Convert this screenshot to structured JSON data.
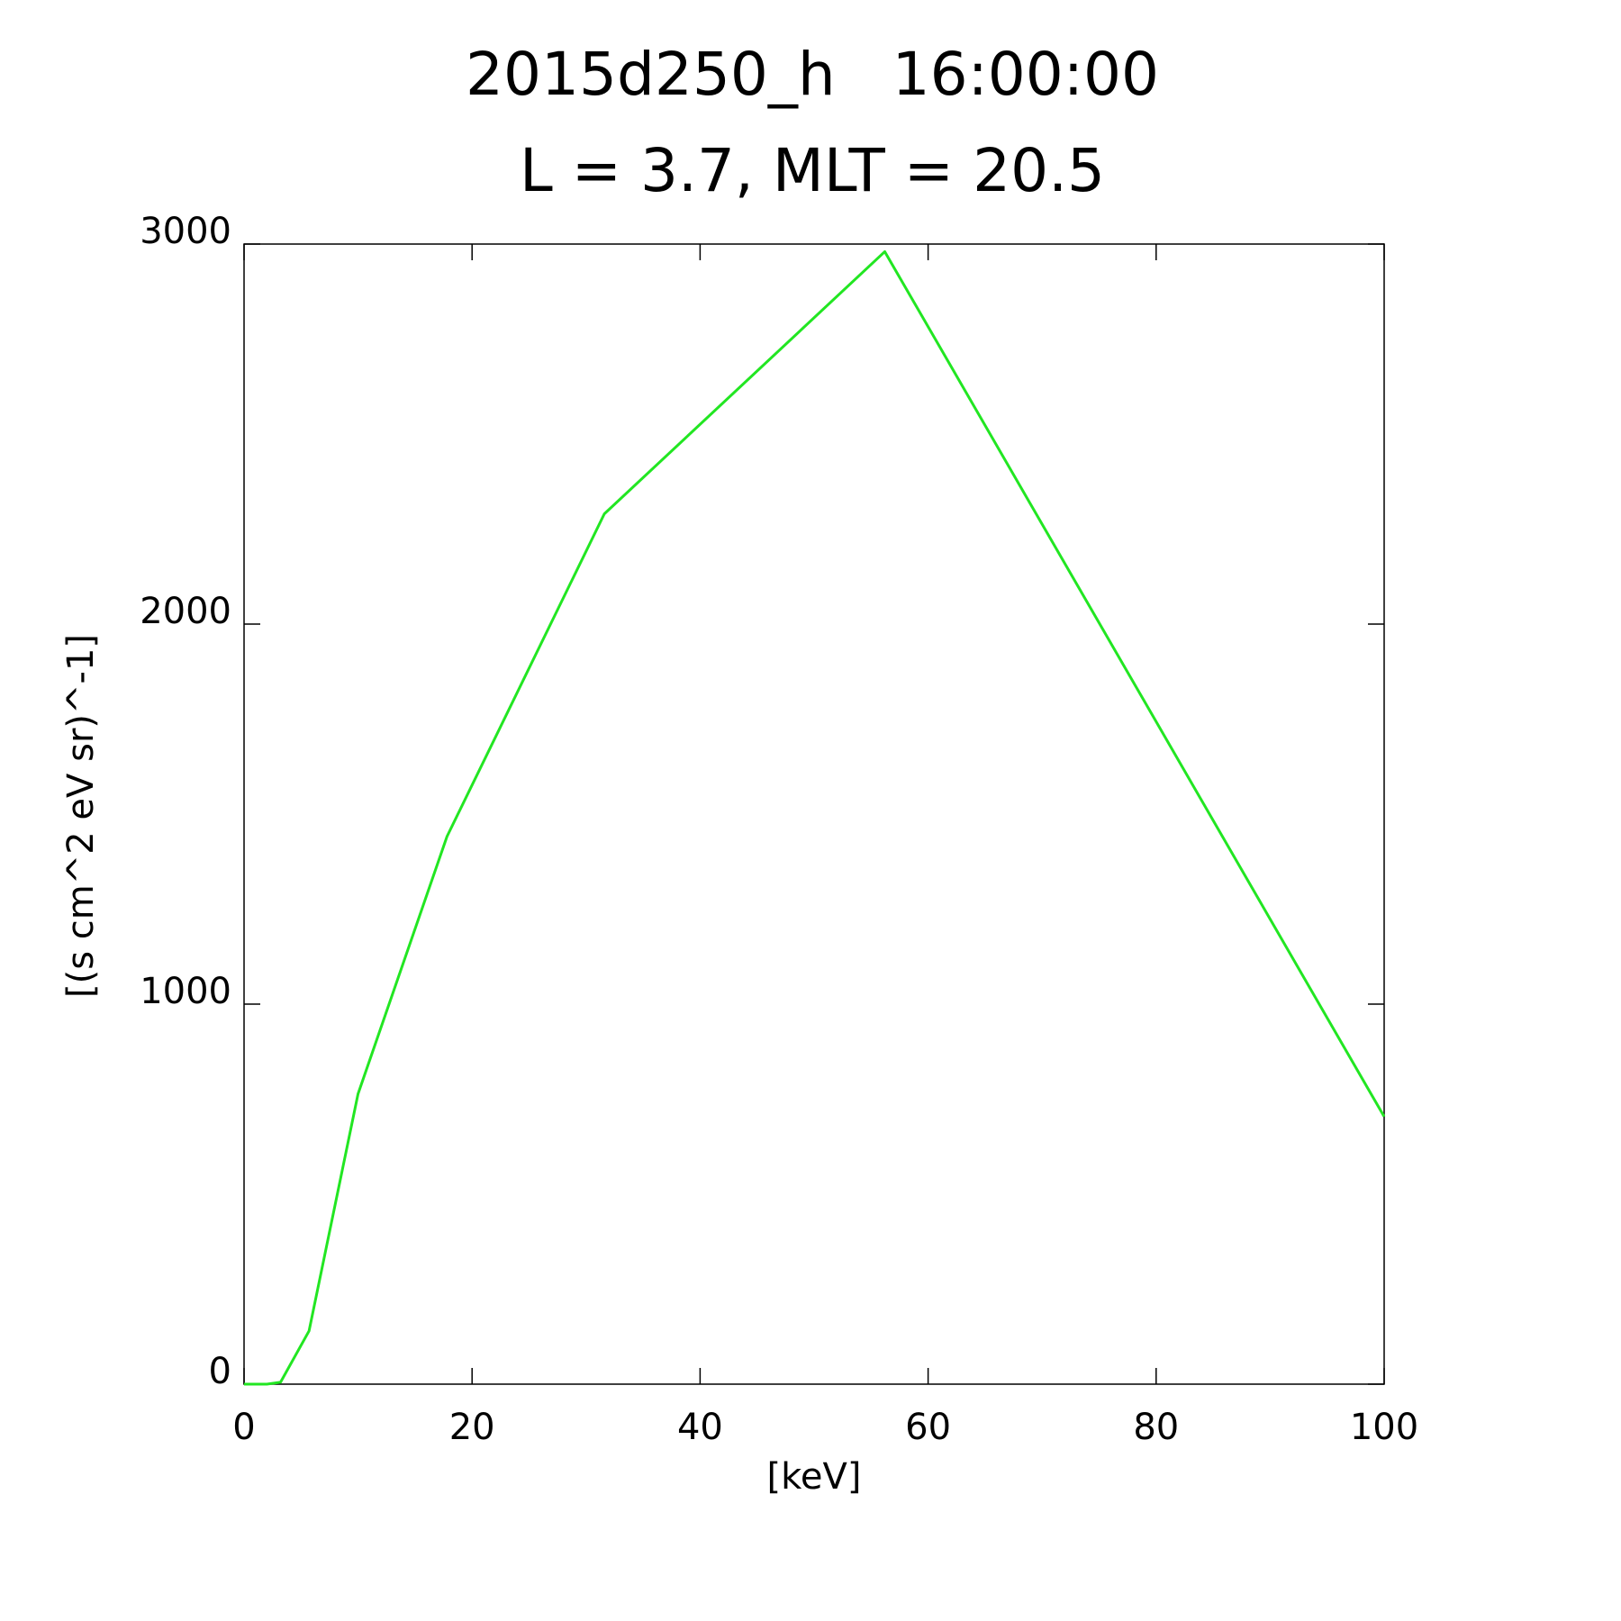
{
  "chart_data": {
    "type": "line",
    "title": "2015d250_h   16:00:00",
    "subtitle": "L = 3.7, MLT = 20.5",
    "x_label": "[keV]",
    "y_label": "[(s cm^2 eV sr)^-1]",
    "x": [
      0,
      2,
      3.2,
      5.7,
      10,
      17.8,
      31.6,
      56.2,
      100
    ],
    "series": [
      {
        "color": "#22e622",
        "values": [
          0,
          0,
          5,
          140,
          764,
          1441,
          2290,
          2980,
          704
        ]
      }
    ],
    "xlim": [
      0,
      100
    ],
    "xticks": [
      0,
      20,
      40,
      60,
      80,
      100
    ],
    "ylim": [
      0,
      3000
    ],
    "yticks": [
      0,
      1000,
      2000,
      3000
    ]
  }
}
